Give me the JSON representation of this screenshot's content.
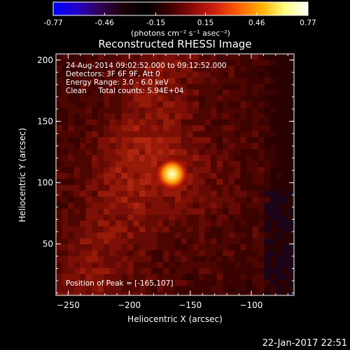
{
  "chart_data": {
    "type": "heatmap",
    "title": "Reconstructed RHESSI Image",
    "xlabel": "Heliocentric X (arcsec)",
    "ylabel": "Heliocentric Y (arcsec)",
    "xlim": [
      -260,
      -65
    ],
    "ylim": [
      8,
      205
    ],
    "x_ticks": [
      -250,
      -200,
      -150,
      -100
    ],
    "y_ticks": [
      50,
      100,
      150,
      200
    ],
    "colorbar": {
      "ticks": [
        "-0.77",
        "-0.46",
        "-0.15",
        "0.15",
        "0.46",
        "0.77"
      ],
      "range": [
        -0.77,
        0.77
      ],
      "units_label": "(photons cm⁻² s⁻¹ asec⁻²)",
      "colormap": [
        "#0000ff",
        "#2200cc",
        "#330055",
        "#1a0008",
        "#000000",
        "#3a0000",
        "#8a0a0a",
        "#d02010",
        "#ff6000",
        "#ffb000",
        "#ffff80",
        "#ffffff"
      ]
    },
    "annotations": [
      "24-Aug-2014 09:02:52.000 to 09:12:52.000",
      "Detectors: 3F 6F 9F, Att 0",
      "Energy Range: 3.0 - 6.0 keV",
      "Clean     Total counts: 5.94E+04"
    ],
    "peak_label": "Position of Peak = [-165,107]",
    "peak": {
      "x": -165,
      "y": 107,
      "value": 0.77
    },
    "grid": false,
    "legend": "colorbar-top"
  },
  "footer": {
    "timestamp": "22-Jan-2017 22:51"
  }
}
